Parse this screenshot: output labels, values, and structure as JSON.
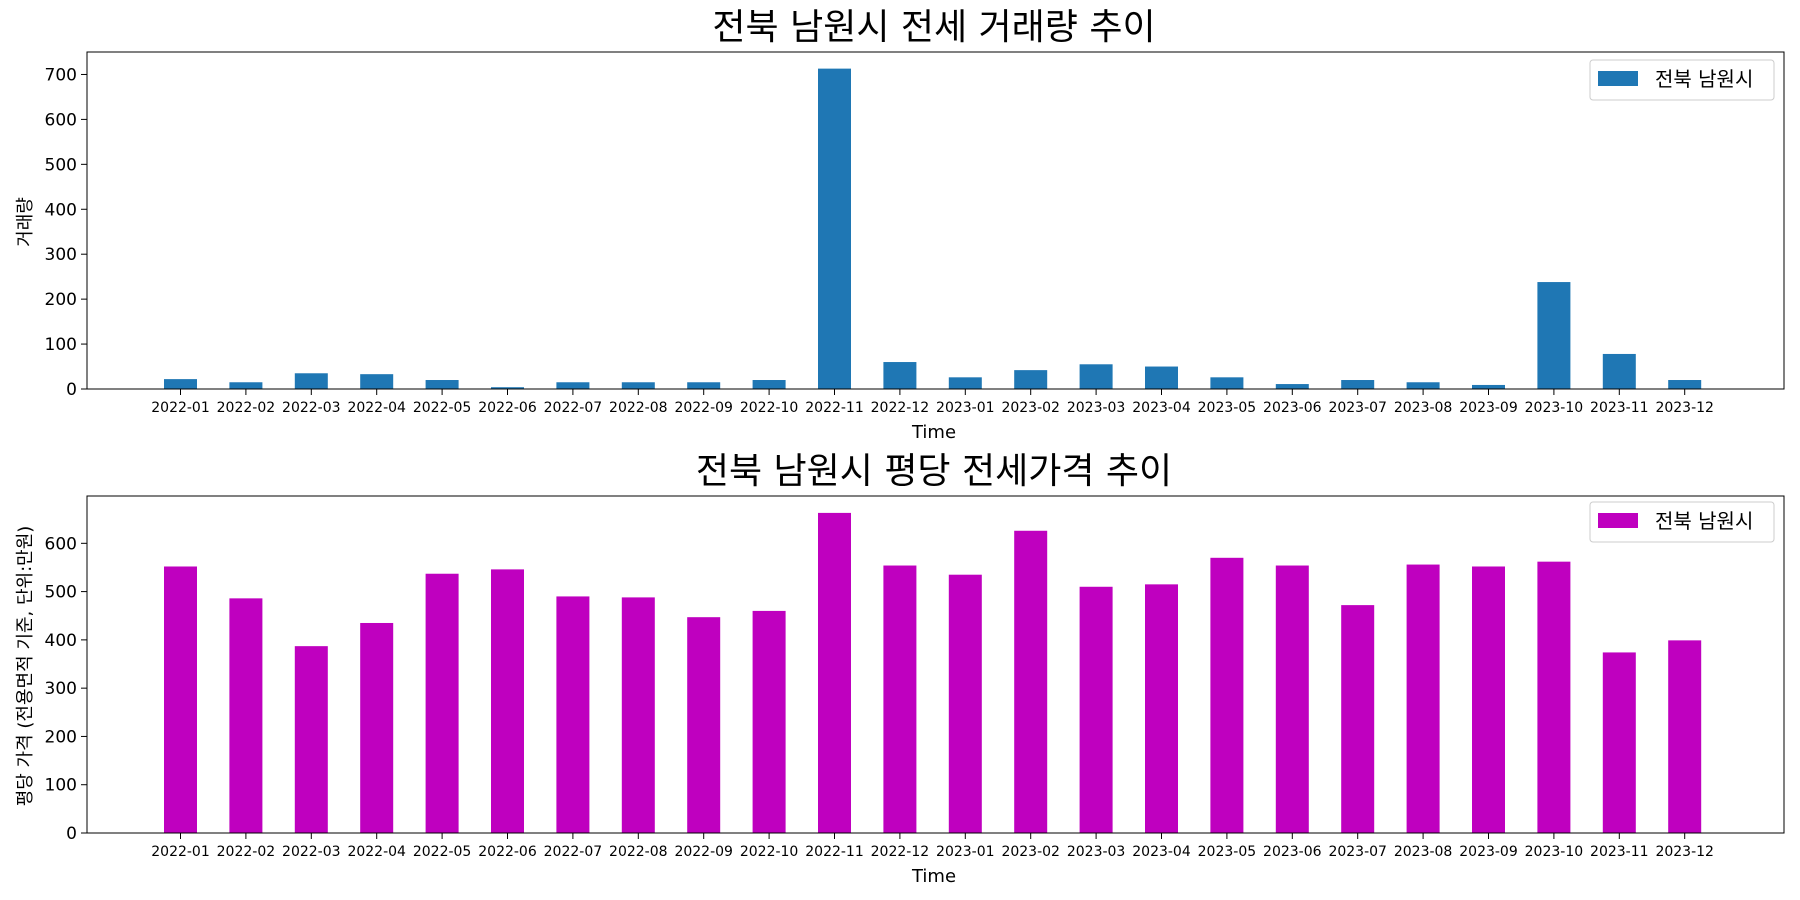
{
  "chart_data": [
    {
      "type": "bar",
      "title": "전북 남원시 전세 거래량 추이",
      "xlabel": "Time",
      "ylabel": "거래량",
      "categories": [
        "2022-01",
        "2022-02",
        "2022-03",
        "2022-04",
        "2022-05",
        "2022-06",
        "2022-07",
        "2022-08",
        "2022-09",
        "2022-10",
        "2022-11",
        "2022-12",
        "2023-01",
        "2023-02",
        "2023-03",
        "2023-04",
        "2023-05",
        "2023-06",
        "2023-07",
        "2023-08",
        "2023-09",
        "2023-10",
        "2023-11",
        "2023-12"
      ],
      "series": [
        {
          "name": "전북 남원시",
          "color": "#1f77b4",
          "values": [
            22,
            15,
            35,
            33,
            20,
            4,
            15,
            15,
            15,
            20,
            713,
            60,
            26,
            42,
            55,
            50,
            26,
            11,
            20,
            15,
            9,
            238,
            78,
            20
          ]
        }
      ],
      "ylim": [
        0,
        750
      ],
      "yticks": [
        0,
        100,
        200,
        300,
        400,
        500,
        600,
        700
      ],
      "legend": "top-right",
      "grid": false
    },
    {
      "type": "bar",
      "title": "전북 남원시 평당 전세가격 추이",
      "xlabel": "Time",
      "ylabel": "평당 가격 (전용면적 기준, 단위:만원)",
      "categories": [
        "2022-01",
        "2022-02",
        "2022-03",
        "2022-04",
        "2022-05",
        "2022-06",
        "2022-07",
        "2022-08",
        "2022-09",
        "2022-10",
        "2022-11",
        "2022-12",
        "2023-01",
        "2023-02",
        "2023-03",
        "2023-04",
        "2023-05",
        "2023-06",
        "2023-07",
        "2023-08",
        "2023-09",
        "2023-10",
        "2023-11",
        "2023-12"
      ],
      "series": [
        {
          "name": "전북 남원시",
          "color": "#bf00bf",
          "values": [
            552,
            486,
            387,
            435,
            537,
            546,
            490,
            488,
            447,
            460,
            663,
            554,
            535,
            626,
            510,
            515,
            570,
            554,
            472,
            556,
            552,
            562,
            374,
            399
          ]
        }
      ],
      "ylim": [
        0,
        698
      ],
      "yticks": [
        0,
        100,
        200,
        300,
        400,
        500,
        600
      ],
      "legend": "top-right",
      "grid": false
    }
  ]
}
